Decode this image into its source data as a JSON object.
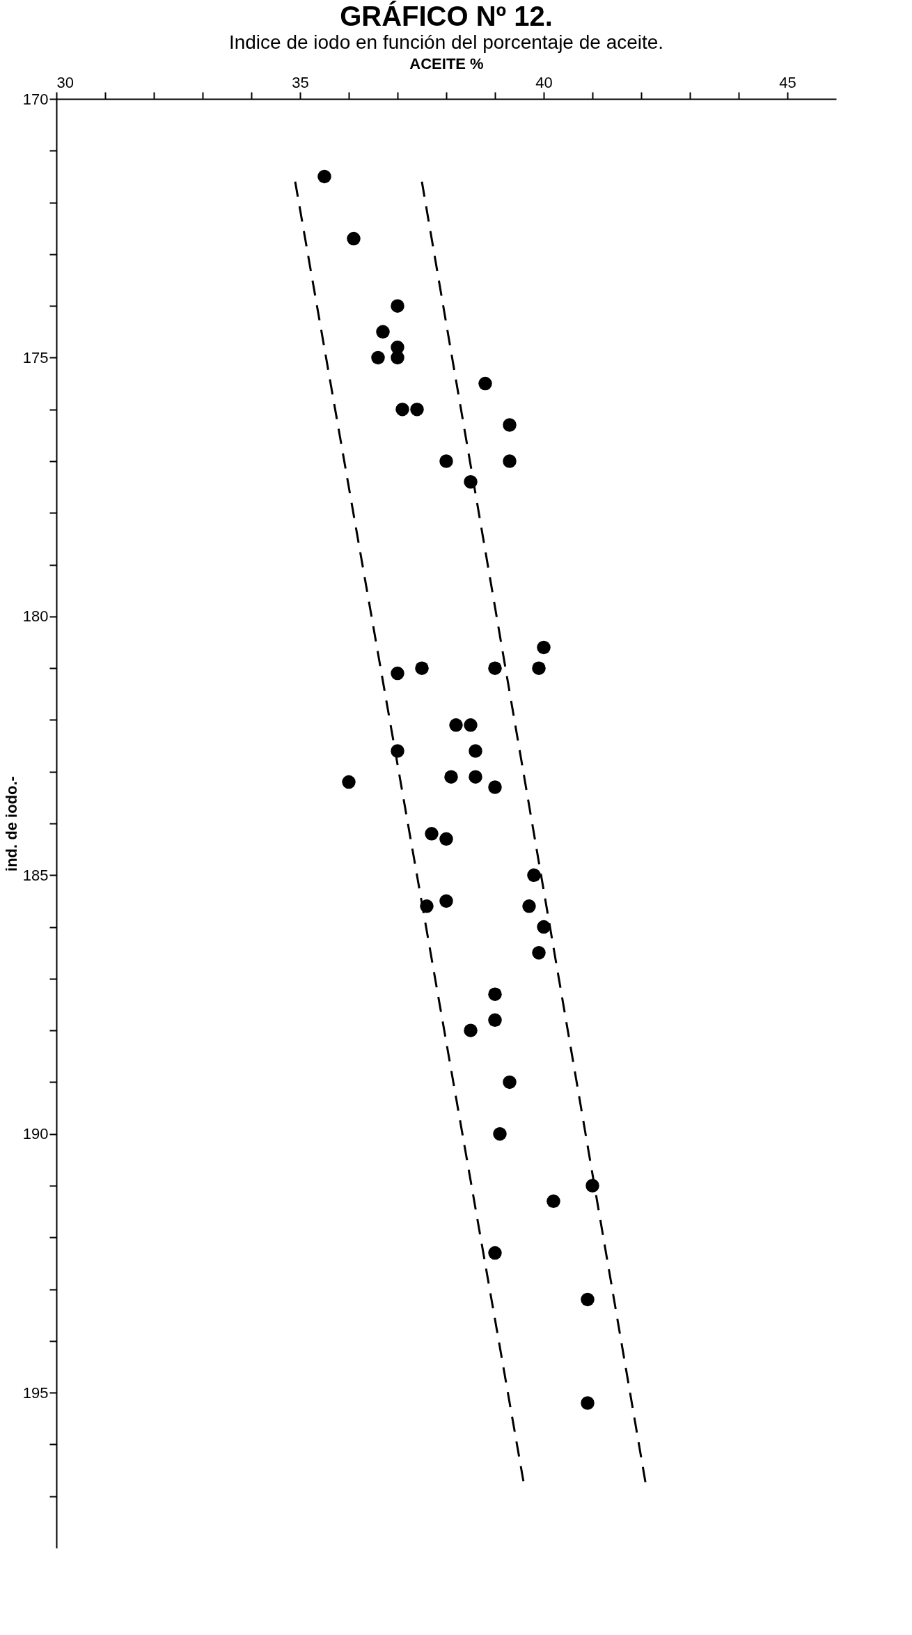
{
  "chart_data": {
    "type": "scatter",
    "title": "GRÁFICO Nº 12.",
    "subtitle": "Indice de iodo en función del porcentaje de aceite.",
    "xlabel": "ACEITE %",
    "ylabel": "ind. de iodo.-",
    "xlim": [
      30,
      46
    ],
    "ylim": [
      198,
      170
    ],
    "xticks": [
      30,
      {
        "value": 31,
        "label": null
      },
      {
        "value": 32,
        "label": null
      },
      {
        "value": 33,
        "label": null
      },
      {
        "value": 34,
        "label": null
      },
      35,
      {
        "value": 36,
        "label": null
      },
      {
        "value": 37,
        "label": null
      },
      {
        "value": 38,
        "label": null
      },
      {
        "value": 39,
        "label": null
      },
      40,
      {
        "value": 41,
        "label": null
      },
      {
        "value": 42,
        "label": null
      },
      {
        "value": 43,
        "label": null
      },
      {
        "value": 44,
        "label": null
      },
      45
    ],
    "yticks": [
      170,
      {
        "value": 171,
        "label": null
      },
      {
        "value": 172,
        "label": null
      },
      {
        "value": 173,
        "label": null
      },
      {
        "value": 174,
        "label": null
      },
      175,
      {
        "value": 176,
        "label": null
      },
      {
        "value": 177,
        "label": null
      },
      {
        "value": 178,
        "label": null
      },
      {
        "value": 179,
        "label": null
      },
      180,
      {
        "value": 181,
        "label": null
      },
      {
        "value": 182,
        "label": null
      },
      {
        "value": 183,
        "label": null
      },
      {
        "value": 184,
        "label": null
      },
      185,
      {
        "value": 186,
        "label": null
      },
      {
        "value": 187,
        "label": null
      },
      {
        "value": 188,
        "label": null
      },
      {
        "value": 189,
        "label": null
      },
      190,
      {
        "value": 191,
        "label": null
      },
      {
        "value": 192,
        "label": null
      },
      {
        "value": 193,
        "label": null
      },
      {
        "value": 194,
        "label": null
      },
      195,
      {
        "value": 196,
        "label": null
      },
      {
        "value": 197,
        "label": null
      }
    ],
    "grid": false,
    "series": [
      {
        "color": "#000000",
        "marker": "circle",
        "x": [
          35.5,
          36.1,
          37.0,
          36.7,
          37.0,
          36.6,
          37.0,
          38.8,
          37.1,
          37.4,
          39.3,
          38.0,
          39.3,
          38.5,
          40.0,
          37.0,
          37.5,
          39.0,
          39.9,
          38.2,
          38.5,
          38.6,
          37.0,
          38.1,
          38.6,
          39.0,
          36.0,
          37.7,
          38.0,
          39.8,
          37.6,
          38.0,
          39.7,
          40.0,
          39.9,
          39.0,
          39.0,
          38.5,
          39.3,
          39.1,
          41.0,
          40.2,
          39.0,
          40.9,
          40.9
        ],
        "values": [
          171.5,
          172.7,
          174.0,
          174.5,
          174.8,
          175.0,
          175.0,
          175.5,
          176.0,
          176.0,
          176.3,
          177.0,
          177.0,
          177.4,
          180.6,
          181.1,
          181.0,
          181.0,
          181.0,
          182.1,
          182.1,
          182.6,
          182.6,
          183.1,
          183.1,
          183.3,
          183.2,
          184.2,
          184.3,
          185.0,
          185.6,
          185.5,
          185.6,
          186.0,
          186.5,
          187.3,
          187.8,
          188.0,
          189.0,
          190.0,
          191.0,
          191.3,
          192.3,
          193.2,
          195.2
        ]
      },
      {
        "type": "line",
        "color": "#000000",
        "line_style": "dashed",
        "marker": "none",
        "x": [
          34.9,
          39.6
        ],
        "values": [
          171.6,
          196.8
        ]
      },
      {
        "type": "line",
        "color": "#000000",
        "line_style": "dashed",
        "marker": "none",
        "x": [
          37.5,
          42.1
        ],
        "values": [
          171.6,
          196.8
        ]
      }
    ]
  }
}
